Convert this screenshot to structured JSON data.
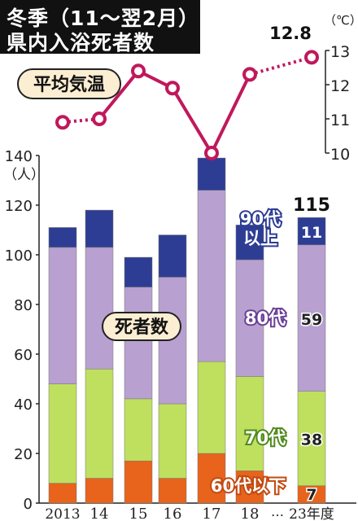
{
  "title": {
    "line1": "冬季（11〜翌2月）の",
    "line2": "県内入浴死者数"
  },
  "chart_data": [
    {
      "type": "line",
      "title": "平均気温",
      "unit": "（℃）",
      "x": [
        "2013",
        "14",
        "15",
        "16",
        "17",
        "18",
        "23年度"
      ],
      "values": [
        10.9,
        11.0,
        12.4,
        11.9,
        10.0,
        12.3,
        12.8
      ],
      "ylim": [
        10,
        13
      ],
      "yticks": [
        "10",
        "11",
        "12",
        "13"
      ],
      "value_label": "12.8",
      "color": "#c0185c"
    },
    {
      "type": "bar",
      "title": "死者数",
      "unit": "（人）",
      "categories": [
        "2013",
        "14",
        "15",
        "16",
        "17",
        "18",
        "23年度"
      ],
      "ylim": [
        0,
        140
      ],
      "yticks": [
        "0",
        "20",
        "40",
        "60",
        "80",
        "100",
        "120",
        "140"
      ],
      "ellipsis": "…",
      "total_label": "115",
      "series": [
        {
          "name": "60代以下",
          "color": "#e8631c",
          "values": [
            8,
            10,
            17,
            10,
            20,
            13,
            7
          ],
          "label": "7"
        },
        {
          "name": "70代",
          "color": "#bfdf5f",
          "values": [
            40,
            44,
            25,
            30,
            37,
            38,
            38
          ],
          "label": "38"
        },
        {
          "name": "80代",
          "color": "#b8a0d0",
          "values": [
            55,
            49,
            45,
            51,
            69,
            47,
            59
          ],
          "label": "59"
        },
        {
          "name": "90代以上",
          "color": "#2e3d94",
          "values": [
            8,
            15,
            12,
            17,
            13,
            14,
            11
          ],
          "label": "11"
        }
      ]
    }
  ]
}
